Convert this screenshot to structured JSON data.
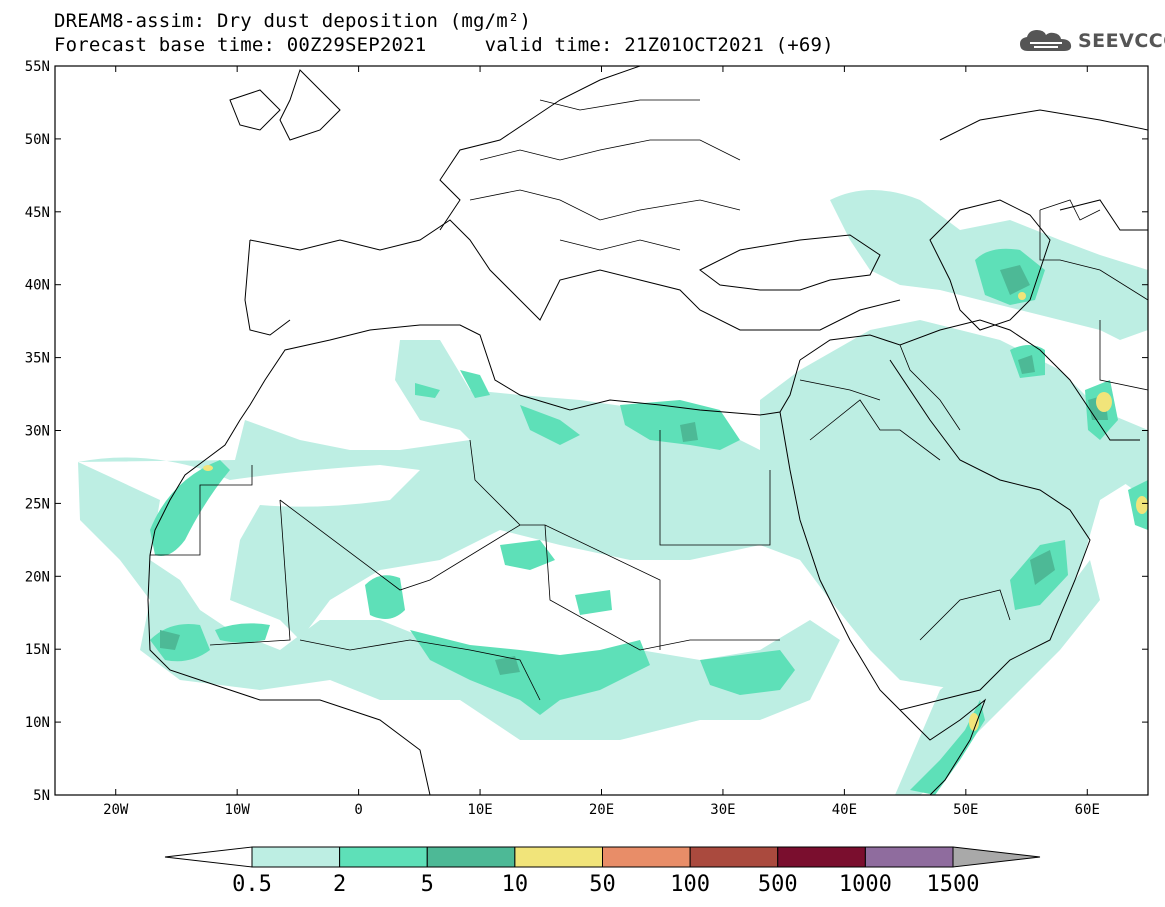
{
  "title_line1": "DREAM8-assim: Dry dust deposition (mg/m²)",
  "title_line2": "Forecast base time: 00Z29SEP2021     valid time: 21Z01OCT2021 (+69)",
  "logo": {
    "text": "SEEVCCC",
    "icon": "cloud-icon",
    "color": "#555555"
  },
  "map": {
    "lon_range": [
      -25,
      65
    ],
    "lat_range": [
      5,
      55
    ],
    "lat_ticks": [
      {
        "value": 55,
        "label": "55N"
      },
      {
        "value": 50,
        "label": "50N"
      },
      {
        "value": 45,
        "label": "45N"
      },
      {
        "value": 40,
        "label": "40N"
      },
      {
        "value": 35,
        "label": "35N"
      },
      {
        "value": 30,
        "label": "30N"
      },
      {
        "value": 25,
        "label": "25N"
      },
      {
        "value": 20,
        "label": "20N"
      },
      {
        "value": 15,
        "label": "15N"
      },
      {
        "value": 10,
        "label": "10N"
      },
      {
        "value": 5,
        "label": "5N"
      }
    ],
    "lon_ticks": [
      {
        "value": -20,
        "label": "20W"
      },
      {
        "value": -10,
        "label": "10W"
      },
      {
        "value": 0,
        "label": "0"
      },
      {
        "value": 10,
        "label": "10E"
      },
      {
        "value": 20,
        "label": "20E"
      },
      {
        "value": 30,
        "label": "30E"
      },
      {
        "value": 40,
        "label": "40E"
      },
      {
        "value": 50,
        "label": "50E"
      },
      {
        "value": 60,
        "label": "60E"
      }
    ]
  },
  "colorbar": {
    "levels": [
      "0.5",
      "2",
      "5",
      "10",
      "50",
      "100",
      "500",
      "1000",
      "1500"
    ],
    "colors": [
      "#ffffff",
      "#bdeee3",
      "#5ee0b8",
      "#4db996",
      "#f1e47a",
      "#e88d68",
      "#aa4a3e",
      "#7a0e2e",
      "#8f6c9e",
      "#a9a9a9"
    ]
  }
}
